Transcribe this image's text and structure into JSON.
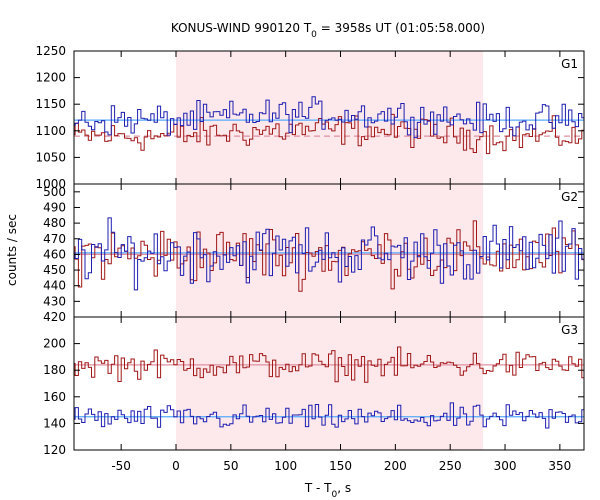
{
  "chart_data": {
    "type": "line",
    "title_main": "KONUS-WIND 990120 T",
    "title_sub": "0",
    "title_rest": " = 3958s UT (01:05:58.000)",
    "xlabel_main": "T - T",
    "xlabel_sub": "0",
    "xlabel_rest": ", s",
    "ylabel": "counts / sec",
    "xlim": [
      -93,
      372
    ],
    "xticks": [
      -50,
      0,
      50,
      100,
      150,
      200,
      250,
      300,
      350
    ],
    "highlight_region": [
      0,
      280
    ],
    "colors": {
      "series_a": "#1f1fb0",
      "series_b": "#a01818",
      "bg_a": "#55aaff",
      "bg_b": "#e090a0",
      "highlight": "#fde8ec"
    },
    "panels": [
      {
        "name": "G1",
        "ylim": [
          1000,
          1250
        ],
        "yticks": [
          1000,
          1050,
          1100,
          1150,
          1200,
          1250
        ],
        "background_a": 1120,
        "background_b": 1090,
        "series_a": {
          "mean": 1120,
          "amp": 22,
          "bump": 12
        },
        "series_b": {
          "mean": 1090,
          "amp": 22,
          "bump": 12
        }
      },
      {
        "name": "G2",
        "ylim": [
          420,
          505
        ],
        "yticks": [
          420,
          430,
          440,
          450,
          460,
          470,
          480,
          490,
          500
        ],
        "background_a": 461,
        "background_b": 460,
        "series_a": {
          "mean": 461,
          "amp": 14,
          "bump": 0
        },
        "series_b": {
          "mean": 460,
          "amp": 14,
          "bump": 0
        }
      },
      {
        "name": "G3",
        "ylim": [
          120,
          220
        ],
        "yticks": [
          120,
          140,
          160,
          180,
          200
        ],
        "background_a": 145,
        "background_b": 184,
        "series_a": {
          "mean": 144,
          "amp": 7,
          "bump": 0
        },
        "series_b": {
          "mean": 184,
          "amp": 8,
          "bump": 0
        }
      }
    ]
  }
}
